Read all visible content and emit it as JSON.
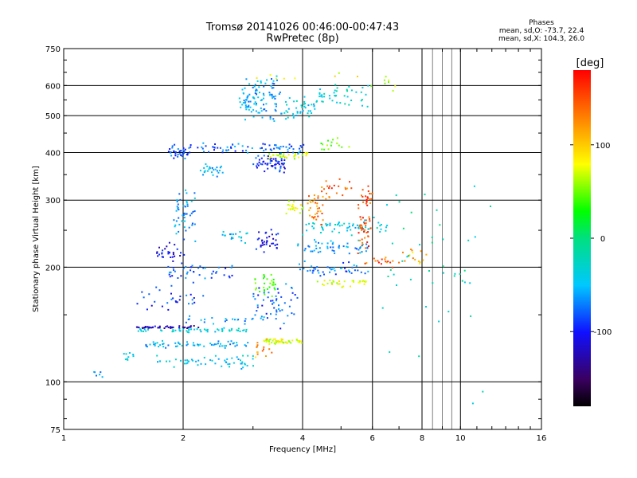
{
  "header": {
    "title_line1": "Tromsø 20141026 00:46:00-00:47:43",
    "title_line2": "RwPretec (8p)"
  },
  "stats": {
    "heading": "Phases",
    "line_o": "mean, sd,O: -73.7, 22.4",
    "line_x": "mean, sd,X: 104.3, 26.0"
  },
  "chart_data": {
    "type": "scatter",
    "xlabel": "Frequency [MHz]",
    "ylabel": "Stationary phase Virtual Height [km]",
    "x_scale": "log",
    "y_scale": "log",
    "xlim": [
      1,
      16
    ],
    "ylim": [
      75,
      750
    ],
    "x_ticks": [
      1,
      2,
      4,
      6,
      8,
      10,
      16
    ],
    "y_ticks": [
      75,
      100,
      200,
      300,
      400,
      500,
      600,
      750
    ],
    "grid": true,
    "colorbar": {
      "unit": "[deg]",
      "tick_labels": [
        "100",
        "0",
        "-100"
      ],
      "tick_values": [
        100,
        0,
        -100
      ],
      "range": [
        -180,
        180
      ]
    },
    "traces": [
      {
        "f": [
          1.15,
          1.25
        ],
        "h": [
          103,
          107
        ],
        "phase": -60,
        "spread": 0.015,
        "n": 6
      },
      {
        "f": [
          1.42,
          1.5
        ],
        "h": [
          112,
          122
        ],
        "phase": -40,
        "spread": 0.02,
        "n": 10
      },
      {
        "f": [
          1.65,
          3.0
        ],
        "h": [
          108,
          118
        ],
        "phase": -45,
        "spread": 0.02,
        "n": 55
      },
      {
        "f": [
          1.6,
          2.9
        ],
        "h": [
          122,
          128
        ],
        "phase": -55,
        "spread": 0.02,
        "n": 60
      },
      {
        "f": [
          1.55,
          2.95
        ],
        "h": [
          135,
          138
        ],
        "phase": -35,
        "spread": 0.015,
        "n": 55
      },
      {
        "f": [
          1.5,
          2.2
        ],
        "h": [
          138,
          140
        ],
        "phase": -125,
        "spread": 0.01,
        "n": 45
      },
      {
        "f": [
          2.0,
          3.2
        ],
        "h": [
          142,
          150
        ],
        "phase": -60,
        "spread": 0.03,
        "n": 25
      },
      {
        "f": [
          1.55,
          2.3
        ],
        "h": [
          150,
          180
        ],
        "phase": -90,
        "spread": 0.05,
        "n": 30
      },
      {
        "f": [
          1.8,
          2.7
        ],
        "h": [
          185,
          205
        ],
        "phase": -80,
        "spread": 0.04,
        "n": 40
      },
      {
        "f": [
          1.7,
          2.0
        ],
        "h": [
          205,
          230
        ],
        "phase": -110,
        "spread": 0.04,
        "n": 30
      },
      {
        "f": [
          1.9,
          2.15
        ],
        "h": [
          230,
          330
        ],
        "phase": -60,
        "spread": 0.03,
        "n": 50
      },
      {
        "f": [
          1.85,
          2.1
        ],
        "h": [
          385,
          420
        ],
        "phase": -85,
        "spread": 0.03,
        "n": 40
      },
      {
        "f": [
          2.1,
          4.0
        ],
        "h": [
          400,
          420
        ],
        "phase": -75,
        "spread": 0.04,
        "n": 70
      },
      {
        "f": [
          2.2,
          2.5
        ],
        "h": [
          350,
          370
        ],
        "phase": -55,
        "spread": 0.04,
        "n": 25
      },
      {
        "f": [
          2.5,
          2.9
        ],
        "h": [
          235,
          250
        ],
        "phase": -50,
        "spread": 0.04,
        "n": 20
      },
      {
        "f": [
          2.8,
          3.5
        ],
        "h": [
          480,
          640
        ],
        "phase": -60,
        "spread": 0.05,
        "n": 110
      },
      {
        "f": [
          3.0,
          3.6
        ],
        "h": [
          355,
          395
        ],
        "phase": -95,
        "spread": 0.04,
        "n": 60
      },
      {
        "f": [
          3.3,
          4.2
        ],
        "h": [
          385,
          400
        ],
        "phase": 85,
        "spread": 0.02,
        "n": 30
      },
      {
        "f": [
          3.6,
          4.3
        ],
        "h": [
          480,
          560
        ],
        "phase": -40,
        "spread": 0.05,
        "n": 40
      },
      {
        "f": [
          4.3,
          5.8
        ],
        "h": [
          520,
          610
        ],
        "phase": -30,
        "spread": 0.05,
        "n": 45
      },
      {
        "f": [
          3.1,
          3.5
        ],
        "h": [
          215,
          250
        ],
        "phase": -105,
        "spread": 0.03,
        "n": 35
      },
      {
        "f": [
          3.0,
          3.4
        ],
        "h": [
          165,
          195
        ],
        "phase": 50,
        "spread": 0.03,
        "n": 30
      },
      {
        "f": [
          3.2,
          4.0
        ],
        "h": [
          126,
          130
        ],
        "phase": 90,
        "spread": 0.01,
        "n": 55
      },
      {
        "f": [
          3.0,
          3.9
        ],
        "h": [
          140,
          185
        ],
        "phase": -80,
        "spread": 0.04,
        "n": 50
      },
      {
        "f": [
          3.0,
          3.3
        ],
        "h": [
          115,
          130
        ],
        "phase": 130,
        "spread": 0.03,
        "n": 15
      },
      {
        "f": [
          3.6,
          4.0
        ],
        "h": [
          275,
          300
        ],
        "phase": 90,
        "spread": 0.03,
        "n": 20
      },
      {
        "f": [
          3.9,
          5.8
        ],
        "h": [
          245,
          265
        ],
        "phase": -40,
        "spread": 0.03,
        "n": 55
      },
      {
        "f": [
          3.9,
          5.9
        ],
        "h": [
          215,
          235
        ],
        "phase": -60,
        "spread": 0.03,
        "n": 50
      },
      {
        "f": [
          3.9,
          5.8
        ],
        "h": [
          190,
          205
        ],
        "phase": -75,
        "spread": 0.03,
        "n": 45
      },
      {
        "f": [
          4.4,
          5.9
        ],
        "h": [
          178,
          186
        ],
        "phase": 90,
        "spread": 0.02,
        "n": 30
      },
      {
        "f": [
          4.1,
          4.6
        ],
        "h": [
          250,
          330
        ],
        "phase": 140,
        "spread": 0.03,
        "n": 35
      },
      {
        "f": [
          5.5,
          5.95
        ],
        "h": [
          200,
          350
        ],
        "phase": 155,
        "spread": 0.03,
        "n": 60
      },
      {
        "f": [
          4.4,
          5.3
        ],
        "h": [
          300,
          340
        ],
        "phase": 150,
        "spread": 0.03,
        "n": 20
      },
      {
        "f": [
          4.5,
          5.3
        ],
        "h": [
          395,
          440
        ],
        "phase": 60,
        "spread": 0.03,
        "n": 15
      },
      {
        "f": [
          6.0,
          7.0
        ],
        "h": [
          200,
          215
        ],
        "phase": 150,
        "spread": 0.03,
        "n": 15
      },
      {
        "f": [
          7.2,
          8.2
        ],
        "h": [
          200,
          230
        ],
        "phase": 120,
        "spread": 0.04,
        "n": 15
      },
      {
        "f": [
          6.0,
          6.8
        ],
        "h": [
          240,
          275
        ],
        "phase": -30,
        "spread": 0.04,
        "n": 10
      },
      {
        "f": [
          6.0,
          7.0
        ],
        "h": [
          560,
          640
        ],
        "phase": 80,
        "spread": 0.04,
        "n": 8
      },
      {
        "f": [
          5.8,
          12.0
        ],
        "h": [
          90,
          420
        ],
        "phase": -20,
        "spread": 0.2,
        "n": 45
      },
      {
        "f": [
          3.0,
          5.5
        ],
        "h": [
          620,
          650
        ],
        "phase": 100,
        "spread": 0.02,
        "n": 8
      }
    ]
  }
}
